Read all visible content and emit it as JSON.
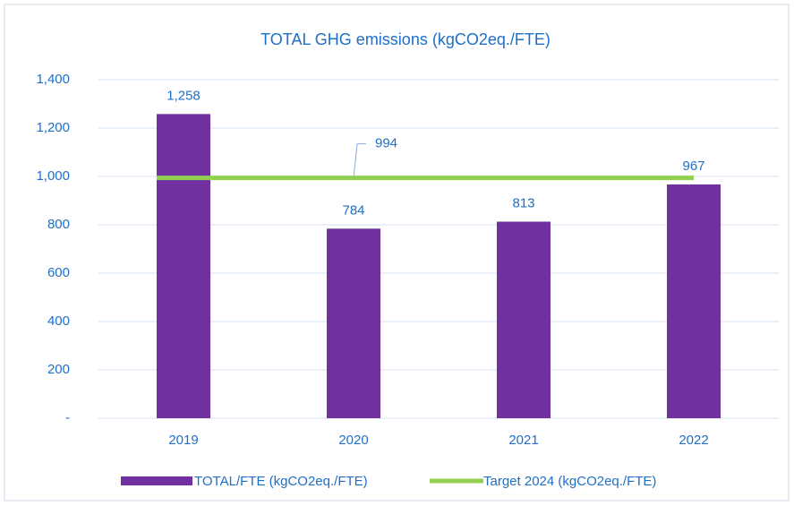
{
  "chart_data": {
    "type": "bar",
    "title": "TOTAL GHG emissions (kgCO2eq./FTE)",
    "categories": [
      "2019",
      "2020",
      "2021",
      "2022"
    ],
    "series": [
      {
        "name": "TOTAL/FTE (kgCO2eq./FTE)",
        "type": "bar",
        "color": "#7030a0",
        "values": [
          1258,
          784,
          813,
          967
        ],
        "value_labels": [
          "1,258",
          "784",
          "813",
          "967"
        ]
      },
      {
        "name": "Target 2024 (kgCO2eq./FTE)",
        "type": "line",
        "color": "#92d050",
        "values": [
          994,
          994,
          994,
          994
        ]
      }
    ],
    "ylim": [
      0,
      1400
    ],
    "yticks": [
      {
        "value": 0,
        "label": "-"
      },
      200,
      400,
      600,
      800,
      {
        "value": 1000,
        "label": "1,000"
      },
      {
        "value": 1200,
        "label": "1,200"
      },
      {
        "value": 1400,
        "label": "1,400"
      }
    ],
    "grid": true,
    "legend": "bottom"
  }
}
